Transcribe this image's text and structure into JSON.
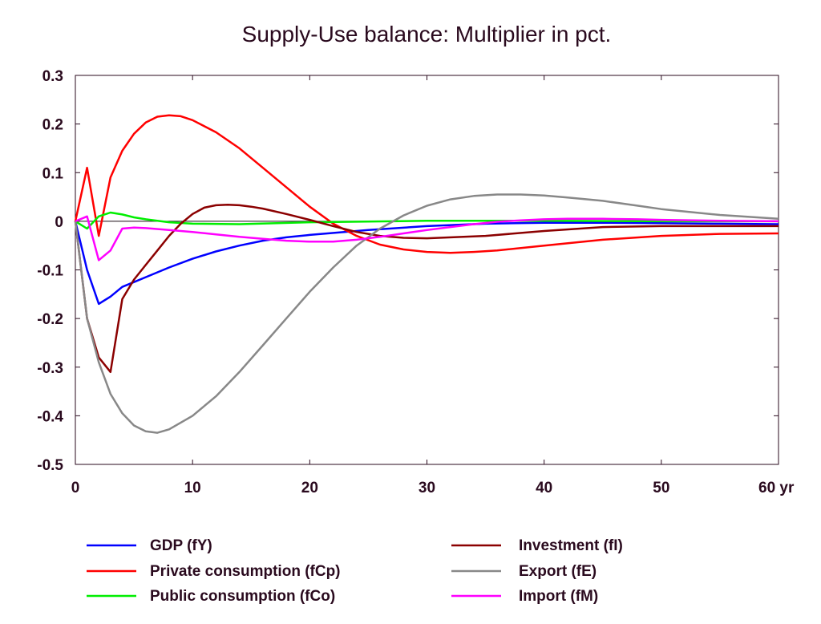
{
  "chart_data": {
    "type": "line",
    "title": "Supply-Use balance: Multiplier in pct.",
    "xlabel": "",
    "ylabel": "",
    "x_unit": "yr",
    "xlim": [
      0,
      60
    ],
    "ylim": [
      -0.5,
      0.3
    ],
    "x_ticks": [
      0,
      10,
      20,
      30,
      40,
      50,
      60
    ],
    "x_tick_labels": [
      "0",
      "10",
      "20",
      "30",
      "40",
      "50",
      "60 yr"
    ],
    "y_ticks": [
      0.3,
      0.2,
      0.1,
      0,
      -0.1,
      -0.2,
      -0.3,
      -0.4,
      -0.5
    ],
    "y_tick_labels": [
      "0.3",
      "0.2",
      "0.1",
      "0",
      "-0.1",
      "-0.2",
      "-0.3",
      "-0.4",
      "-0.5"
    ],
    "grid": false,
    "zero_line": true,
    "legend_position": "bottom",
    "series": [
      {
        "name": "GDP (fY)",
        "color": "#0000ff",
        "x": [
          0,
          1,
          2,
          3,
          4,
          5,
          6,
          8,
          10,
          12,
          14,
          16,
          18,
          20,
          25,
          30,
          35,
          40,
          45,
          50,
          55,
          60
        ],
        "y": [
          0,
          -0.1,
          -0.17,
          -0.155,
          -0.135,
          -0.125,
          -0.115,
          -0.095,
          -0.077,
          -0.062,
          -0.05,
          -0.04,
          -0.033,
          -0.028,
          -0.018,
          -0.01,
          -0.005,
          -0.003,
          -0.003,
          -0.004,
          -0.005,
          -0.006
        ]
      },
      {
        "name": "Private consumption (fCp)",
        "color": "#ff0000",
        "x": [
          0,
          1,
          2,
          3,
          4,
          5,
          6,
          7,
          8,
          9,
          10,
          12,
          14,
          16,
          18,
          20,
          22,
          24,
          26,
          28,
          30,
          32,
          34,
          36,
          40,
          45,
          50,
          55,
          60
        ],
        "y": [
          0,
          0.11,
          -0.03,
          0.09,
          0.145,
          0.18,
          0.203,
          0.215,
          0.218,
          0.216,
          0.208,
          0.183,
          0.15,
          0.11,
          0.07,
          0.03,
          -0.005,
          -0.03,
          -0.048,
          -0.058,
          -0.063,
          -0.065,
          -0.063,
          -0.06,
          -0.05,
          -0.038,
          -0.03,
          -0.026,
          -0.025
        ]
      },
      {
        "name": "Public consumption (fCo)",
        "color": "#00ee00",
        "x": [
          0,
          1,
          2,
          3,
          4,
          5,
          6,
          8,
          10,
          14,
          20,
          30,
          40,
          50,
          60
        ],
        "y": [
          0,
          -0.015,
          0.01,
          0.018,
          0.014,
          0.008,
          0.004,
          -0.002,
          -0.005,
          -0.006,
          -0.002,
          0.001,
          0.001,
          0,
          0
        ]
      },
      {
        "name": "Investment (fI)",
        "color": "#8b0000",
        "x": [
          0,
          1,
          2,
          3,
          4,
          5,
          6,
          7,
          8,
          9,
          10,
          11,
          12,
          13,
          14,
          15,
          16,
          18,
          20,
          22,
          24,
          26,
          28,
          30,
          35,
          40,
          45,
          50,
          55,
          60
        ],
        "y": [
          0,
          -0.2,
          -0.28,
          -0.31,
          -0.16,
          -0.12,
          -0.09,
          -0.06,
          -0.03,
          -0.005,
          0.015,
          0.028,
          0.033,
          0.034,
          0.033,
          0.03,
          0.026,
          0.015,
          0.003,
          -0.01,
          -0.022,
          -0.03,
          -0.034,
          -0.035,
          -0.03,
          -0.02,
          -0.012,
          -0.01,
          -0.01,
          -0.01
        ]
      },
      {
        "name": "Export (fE)",
        "color": "#888888",
        "x": [
          0,
          1,
          2,
          3,
          4,
          5,
          6,
          7,
          8,
          10,
          12,
          14,
          16,
          18,
          20,
          22,
          24,
          26,
          28,
          30,
          32,
          34,
          36,
          38,
          40,
          42,
          45,
          48,
          50,
          55,
          60
        ],
        "y": [
          0,
          -0.2,
          -0.29,
          -0.355,
          -0.395,
          -0.42,
          -0.432,
          -0.435,
          -0.428,
          -0.4,
          -0.36,
          -0.31,
          -0.255,
          -0.2,
          -0.145,
          -0.095,
          -0.05,
          -0.015,
          0.012,
          0.032,
          0.045,
          0.052,
          0.055,
          0.055,
          0.053,
          0.049,
          0.042,
          0.032,
          0.025,
          0.013,
          0.005
        ]
      },
      {
        "name": "Import (fM)",
        "color": "#ff00ff",
        "x": [
          0,
          1,
          2,
          3,
          4,
          5,
          6,
          8,
          10,
          12,
          14,
          16,
          18,
          20,
          22,
          24,
          26,
          28,
          30,
          32,
          34,
          36,
          38,
          40,
          42,
          45,
          48,
          50,
          55,
          60
        ],
        "y": [
          0,
          0.01,
          -0.08,
          -0.06,
          -0.015,
          -0.013,
          -0.014,
          -0.018,
          -0.022,
          -0.027,
          -0.032,
          -0.036,
          -0.04,
          -0.042,
          -0.042,
          -0.038,
          -0.032,
          -0.025,
          -0.018,
          -0.012,
          -0.006,
          -0.001,
          0.002,
          0.004,
          0.005,
          0.005,
          0.004,
          0.003,
          0.001,
          0
        ]
      }
    ]
  }
}
